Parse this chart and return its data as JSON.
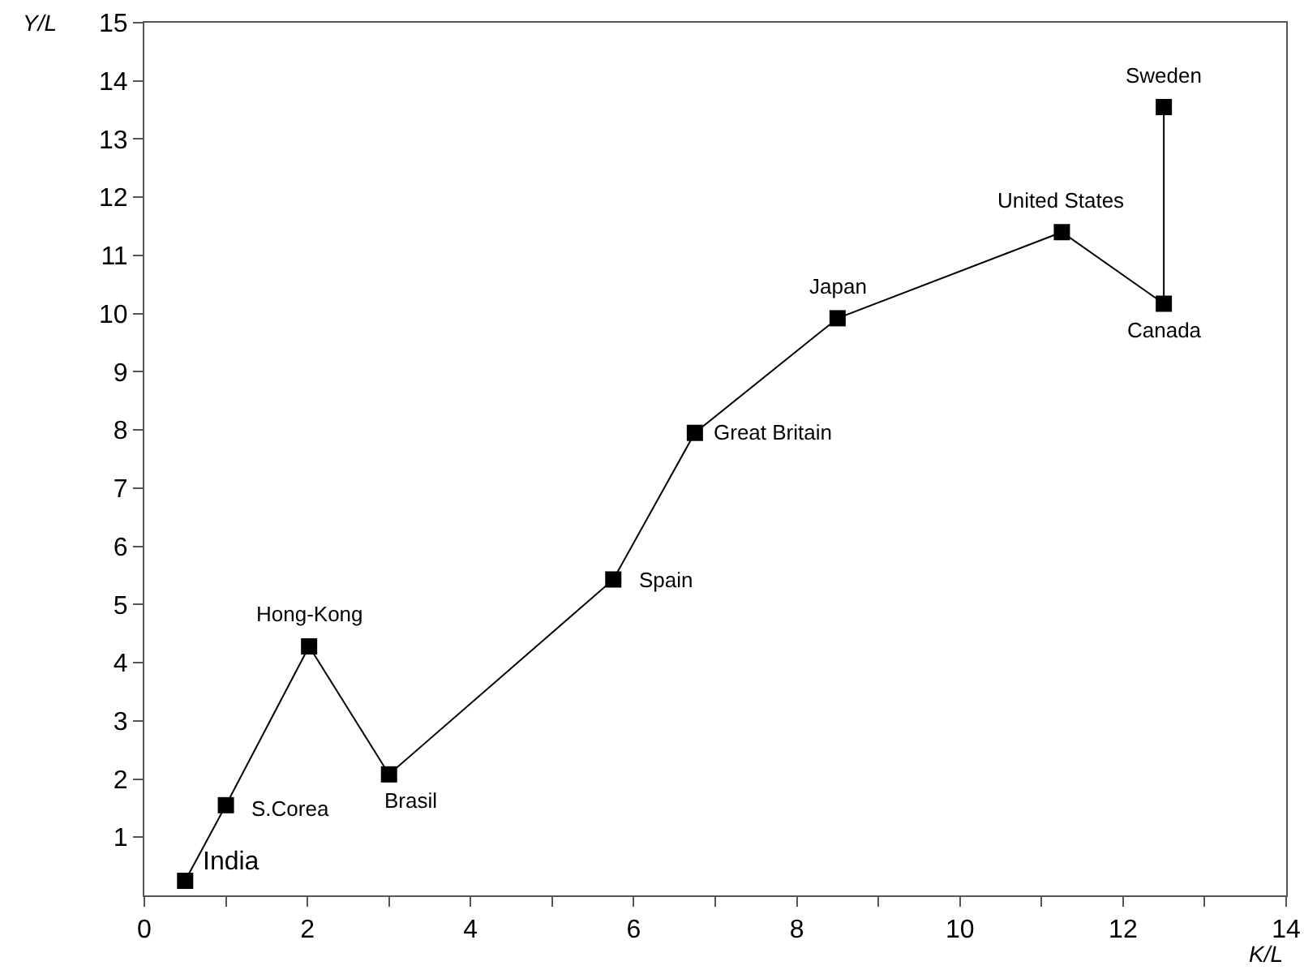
{
  "chart_data": {
    "type": "line",
    "xlabel": "K/L",
    "ylabel": "Y/L",
    "marker": "square",
    "line_style": "solid",
    "x": [
      0.5,
      1.0,
      2.02,
      3.0,
      5.75,
      6.75,
      8.5,
      11.25,
      12.5,
      12.5
    ],
    "series": [
      {
        "color": "#000000",
        "values": [
          0.25,
          1.55,
          4.28,
          2.08,
          5.43,
          7.95,
          9.92,
          11.4,
          10.17,
          13.55
        ]
      }
    ],
    "xlim": [
      0,
      14
    ],
    "xticks": [
      0,
      {
        "value": 1,
        "label": null
      },
      2,
      {
        "value": 3,
        "label": null
      },
      4,
      {
        "value": 5,
        "label": null
      },
      6,
      {
        "value": 7,
        "label": null
      },
      8,
      {
        "value": 9,
        "label": null
      },
      10,
      {
        "value": 11,
        "label": null
      },
      12,
      {
        "value": 13,
        "label": null
      },
      14
    ],
    "ylim": [
      0,
      15
    ],
    "yticks": [
      1,
      2,
      3,
      4,
      5,
      6,
      7,
      8,
      9,
      10,
      11,
      12,
      13,
      14,
      15
    ],
    "annotations": [
      {
        "text": "India",
        "x": 0.5,
        "y": 0.25
      },
      {
        "text": "S.Corea",
        "x": 1.0,
        "y": 1.55
      },
      {
        "text": "Hong-Kong",
        "x": 2.02,
        "y": 4.28
      },
      {
        "text": "Brasil",
        "x": 3.0,
        "y": 2.08
      },
      {
        "text": "Spain",
        "x": 5.75,
        "y": 5.43
      },
      {
        "text": "Great Britain",
        "x": 6.75,
        "y": 7.95
      },
      {
        "text": "Japan",
        "x": 8.5,
        "y": 9.92
      },
      {
        "text": "United States",
        "x": 11.25,
        "y": 11.4
      },
      {
        "text": "Canada",
        "x": 12.5,
        "y": 10.17
      },
      {
        "text": "Sweden",
        "x": 12.5,
        "y": 13.55
      }
    ]
  }
}
